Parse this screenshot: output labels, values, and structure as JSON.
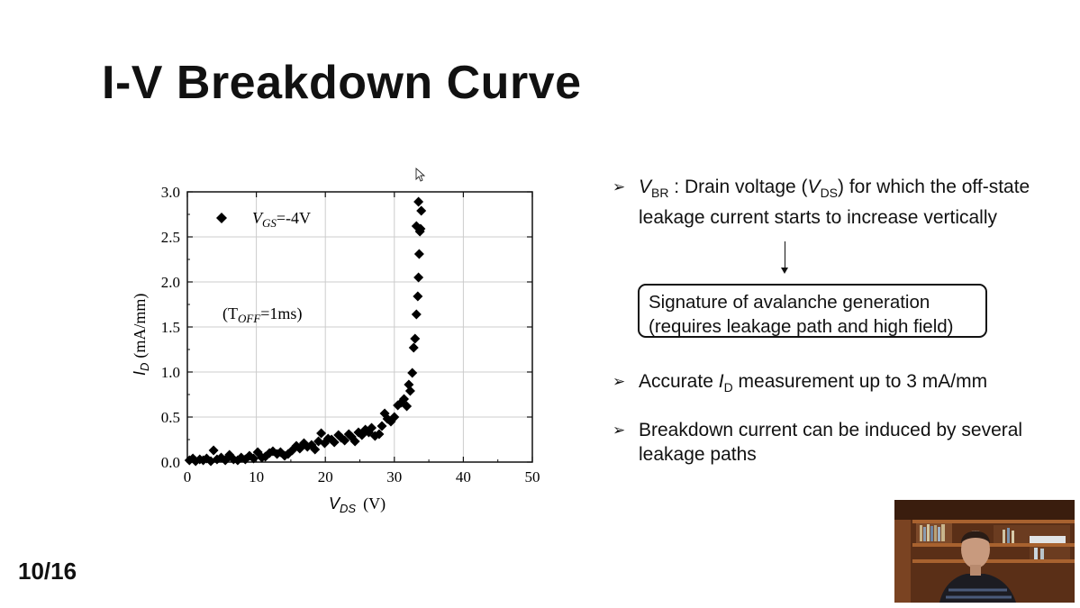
{
  "slide": {
    "title": "I-V Breakdown Curve",
    "page_number": "10/16"
  },
  "chart_data": {
    "type": "scatter",
    "xlabel": "V_DS (V)",
    "xlabel_main": "V",
    "xlabel_sub": "DS",
    "xlabel_unit": "(V)",
    "ylabel": "I_D (mA/mm)",
    "ylabel_main": "I",
    "ylabel_sub": "D",
    "ylabel_unit": "(mA/mm)",
    "xlim": [
      0,
      50
    ],
    "ylim": [
      0,
      3.0
    ],
    "x_ticks": [
      0,
      10,
      20,
      30,
      40,
      50
    ],
    "y_ticks": [
      "0.0",
      "0.5",
      "1.0",
      "1.5",
      "2.0",
      "2.5",
      "3.0"
    ],
    "grid": true,
    "legend": {
      "placement": "top-left",
      "marker": "diamond",
      "label_main": "V",
      "label_sub": "GS",
      "label_rest": "=-4V"
    },
    "annotation": {
      "open": "(T",
      "sub": "OFF",
      "rest": "=1ms)"
    },
    "series": [
      {
        "marker": "diamond",
        "color": "#000000",
        "points": [
          [
            0.3,
            0.02
          ],
          [
            0.8,
            0.04
          ],
          [
            1.2,
            0.01
          ],
          [
            1.8,
            0.03
          ],
          [
            2.3,
            0.02
          ],
          [
            2.8,
            0.04
          ],
          [
            3.4,
            0.01
          ],
          [
            3.8,
            0.13
          ],
          [
            4.3,
            0.03
          ],
          [
            4.9,
            0.05
          ],
          [
            5.5,
            0.02
          ],
          [
            6.1,
            0.08
          ],
          [
            6.7,
            0.03
          ],
          [
            7.3,
            0.02
          ],
          [
            7.8,
            0.05
          ],
          [
            8.4,
            0.03
          ],
          [
            9.0,
            0.07
          ],
          [
            9.6,
            0.04
          ],
          [
            10.2,
            0.11
          ],
          [
            10.8,
            0.05
          ],
          [
            11.3,
            0.06
          ],
          [
            11.9,
            0.1
          ],
          [
            12.4,
            0.12
          ],
          [
            13.0,
            0.09
          ],
          [
            13.5,
            0.11
          ],
          [
            14.1,
            0.07
          ],
          [
            14.6,
            0.09
          ],
          [
            15.2,
            0.13
          ],
          [
            15.8,
            0.18
          ],
          [
            16.3,
            0.15
          ],
          [
            16.9,
            0.21
          ],
          [
            17.4,
            0.17
          ],
          [
            18.0,
            0.19
          ],
          [
            18.5,
            0.14
          ],
          [
            19.0,
            0.23
          ],
          [
            19.4,
            0.32
          ],
          [
            19.9,
            0.21
          ],
          [
            20.4,
            0.26
          ],
          [
            20.9,
            0.25
          ],
          [
            21.3,
            0.22
          ],
          [
            21.9,
            0.3
          ],
          [
            22.3,
            0.27
          ],
          [
            22.8,
            0.24
          ],
          [
            23.4,
            0.31
          ],
          [
            23.8,
            0.28
          ],
          [
            24.3,
            0.23
          ],
          [
            24.8,
            0.33
          ],
          [
            25.3,
            0.3
          ],
          [
            25.8,
            0.36
          ],
          [
            26.3,
            0.33
          ],
          [
            26.7,
            0.38
          ],
          [
            27.2,
            0.29
          ],
          [
            27.8,
            0.31
          ],
          [
            28.2,
            0.4
          ],
          [
            28.6,
            0.54
          ],
          [
            29.0,
            0.48
          ],
          [
            29.5,
            0.45
          ],
          [
            30.0,
            0.5
          ],
          [
            30.5,
            0.63
          ],
          [
            31.0,
            0.66
          ],
          [
            31.4,
            0.7
          ],
          [
            31.8,
            0.62
          ],
          [
            32.1,
            0.86
          ],
          [
            32.3,
            0.79
          ],
          [
            32.6,
            0.99
          ],
          [
            32.8,
            1.27
          ],
          [
            33.0,
            1.37
          ],
          [
            33.2,
            1.64
          ],
          [
            33.4,
            1.84
          ],
          [
            33.5,
            2.05
          ],
          [
            33.6,
            2.31
          ],
          [
            33.7,
            2.56
          ],
          [
            33.8,
            2.59
          ],
          [
            33.9,
            2.79
          ],
          [
            33.5,
            2.89
          ],
          [
            33.2,
            2.62
          ]
        ]
      }
    ]
  },
  "bullets": {
    "b1": {
      "arrow": "➢",
      "v_main": "V",
      "v_sub": "BR",
      "text_before": " : Drain voltage (",
      "vds_main": "V",
      "vds_sub": "DS",
      "text_after": ") for which the off-state leakage current starts to increase vertically"
    },
    "signature": {
      "line1": "Signature of avalanche generation",
      "line2": "(requires leakage path and high field)"
    },
    "b2": {
      "arrow": "➢",
      "text_before": "Accurate ",
      "i_main": "I",
      "i_sub": "D",
      "text_after": " measurement up to 3 mA/mm"
    },
    "b3": {
      "arrow": "➢",
      "text": "Breakdown current can be induced by several leakage paths"
    }
  },
  "colors": {
    "background": "#ffffff",
    "text": "#111111",
    "grid": "#cccccc",
    "marker": "#000000"
  },
  "icons": {
    "cursor": "mouse-pointer-icon",
    "webcam": "presenter-webcam-feed"
  }
}
